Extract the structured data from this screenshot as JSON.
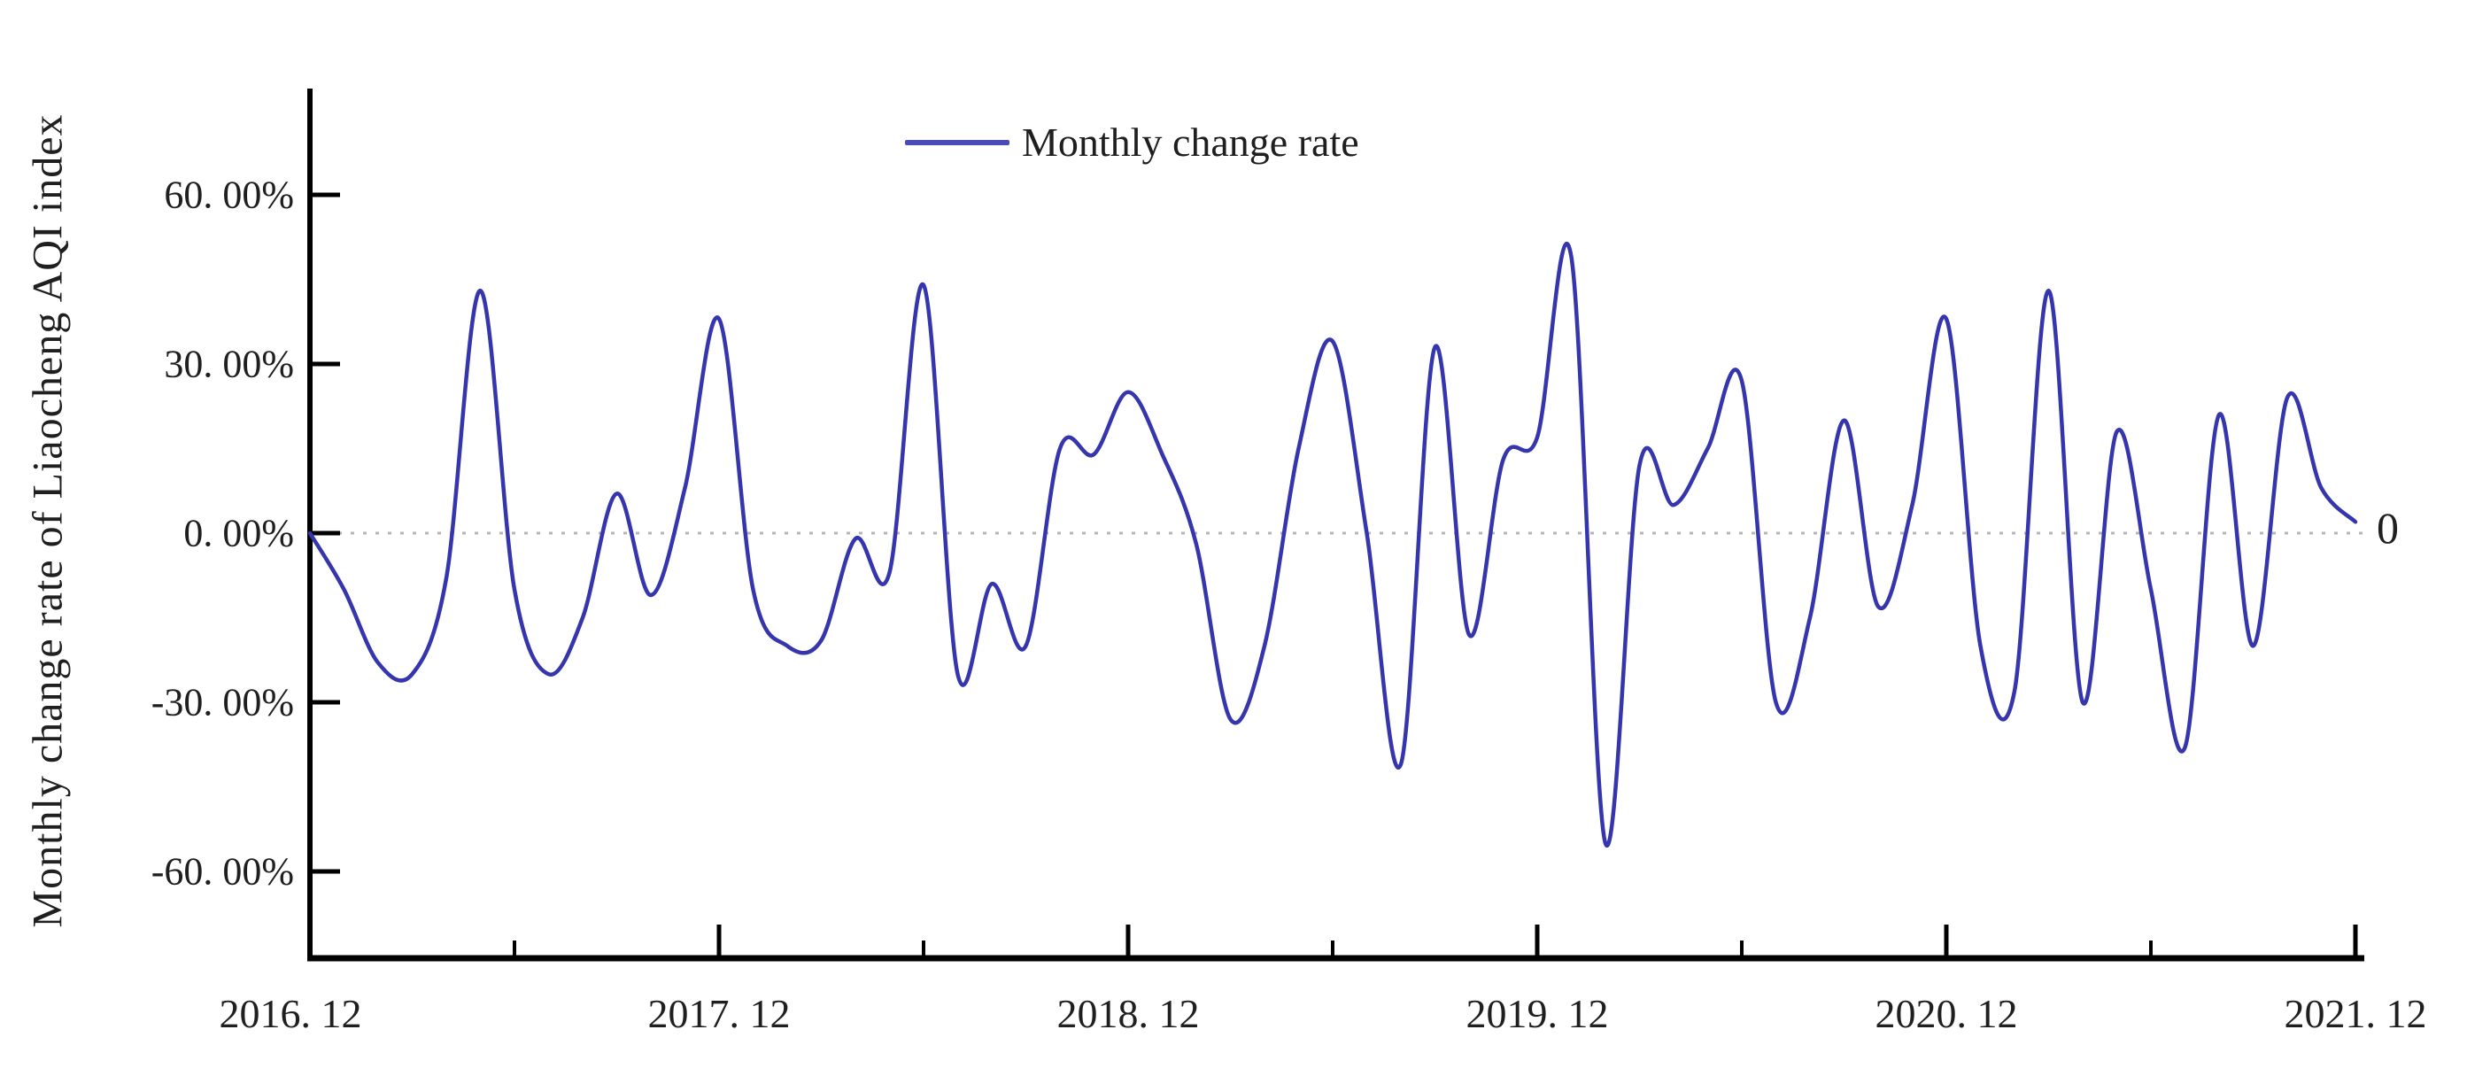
{
  "colors": {
    "line": "#3535ad",
    "legend_line": "#4a4ab8",
    "axis": "#000000",
    "zero_line": "#b5b5b5",
    "text": "#1f1f1f",
    "background": "#ffffff"
  },
  "y_axis": {
    "title": "Monthly change rate of Liaocheng AQI index",
    "ticks": [
      {
        "label": "60. 00%",
        "value": 60
      },
      {
        "label": "30. 00%",
        "value": 30
      },
      {
        "label": "0. 00%",
        "value": 0
      },
      {
        "label": "-30. 00%",
        "value": -30
      },
      {
        "label": "-60. 00%",
        "value": -60
      }
    ]
  },
  "x_axis": {
    "ticks": [
      {
        "label": "2016. 12",
        "month": 0
      },
      {
        "label": "2017. 12",
        "month": 12
      },
      {
        "label": "2018. 12",
        "month": 24
      },
      {
        "label": "2019. 12",
        "month": 36
      },
      {
        "label": "2020. 12",
        "month": 48
      },
      {
        "label": "2021. 12",
        "month": 60
      }
    ],
    "minor_tick_months": [
      6,
      18,
      30,
      42,
      54
    ]
  },
  "legend": {
    "label": "Monthly change rate"
  },
  "zero_line_end_label": "0",
  "chart_data": {
    "type": "line",
    "title": "",
    "xlabel": "",
    "ylabel": "Monthly change rate of Liaocheng AQI index",
    "legend_position": "top-center",
    "grid": false,
    "ylim": [
      -75,
      78
    ],
    "y_unit": "percent",
    "zero_reference_line": true,
    "x": [
      "2016.12",
      "2017.01",
      "2017.02",
      "2017.03",
      "2017.04",
      "2017.05",
      "2017.06",
      "2017.07",
      "2017.08",
      "2017.09",
      "2017.10",
      "2017.11",
      "2017.12",
      "2018.01",
      "2018.02",
      "2018.03",
      "2018.04",
      "2018.05",
      "2018.06",
      "2018.07",
      "2018.08",
      "2018.09",
      "2018.10",
      "2018.11",
      "2018.12",
      "2019.01",
      "2019.02",
      "2019.03",
      "2019.04",
      "2019.05",
      "2019.06",
      "2019.07",
      "2019.08",
      "2019.09",
      "2019.10",
      "2019.11",
      "2019.12",
      "2020.01",
      "2020.02",
      "2020.03",
      "2020.04",
      "2020.05",
      "2020.06",
      "2020.07",
      "2020.08",
      "2020.09",
      "2020.10",
      "2020.11",
      "2020.12",
      "2021.01",
      "2021.02",
      "2021.03",
      "2021.04",
      "2021.05",
      "2021.06",
      "2021.07",
      "2021.08",
      "2021.09",
      "2021.10",
      "2021.11",
      "2021.12"
    ],
    "series": [
      {
        "name": "Monthly change rate",
        "values": [
          0.0,
          -10,
          -23,
          -25,
          -8,
          43,
          -10,
          -25,
          -15,
          7,
          -11,
          8,
          38,
          -10,
          -20,
          -19,
          -1,
          -7,
          44,
          -25,
          -9,
          -20,
          15,
          14,
          25,
          14,
          -2,
          -33,
          -20,
          15,
          34,
          0,
          -41,
          33,
          -18,
          13,
          17,
          49,
          -55,
          12,
          5,
          15,
          27,
          -30,
          -15,
          20,
          -13,
          5,
          38,
          -20,
          -28,
          43,
          -30,
          18,
          -10,
          -38,
          21,
          -20,
          24,
          8,
          2
        ]
      }
    ]
  }
}
